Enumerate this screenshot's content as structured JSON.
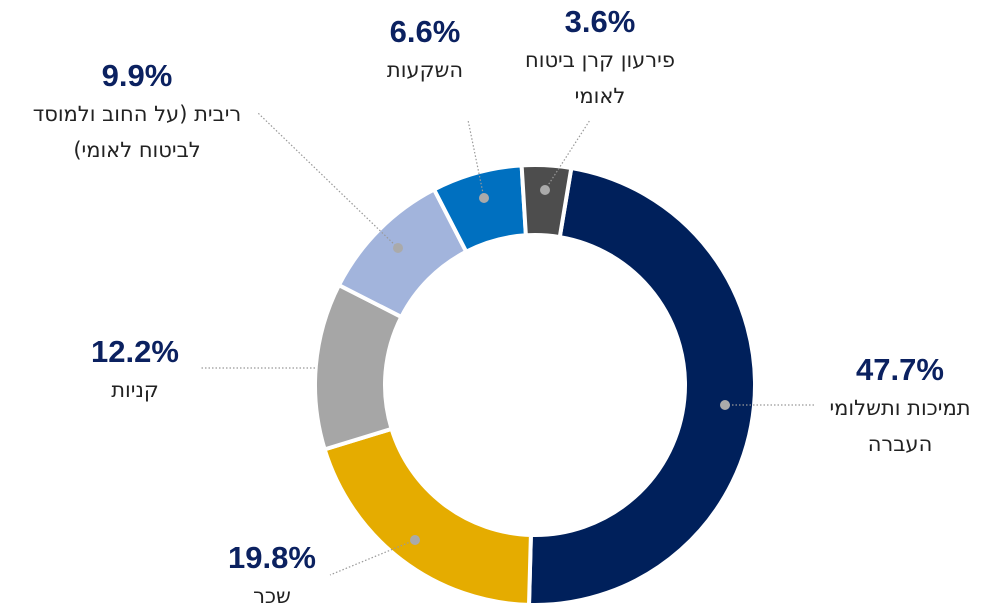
{
  "chart_data": {
    "type": "donut",
    "categories": [
      "תמיכות ותשלומי העברה",
      "שכר",
      "קניות",
      "ריבית (על החוב ולמוסד לביטוח לאומי)",
      "השקעות",
      "פירעון קרן ביטוח לאומי"
    ],
    "values": [
      47.7,
      19.8,
      12.2,
      9.9,
      6.6,
      3.6
    ],
    "value_labels": [
      "47.7%",
      "19.8%",
      "12.2%",
      "9.9%",
      "6.6%",
      "3.6%"
    ],
    "colors": [
      "#00205b",
      "#e5ac00",
      "#a6a6a6",
      "#a2b4dc",
      "#0070c0",
      "#4d4d4d"
    ]
  }
}
